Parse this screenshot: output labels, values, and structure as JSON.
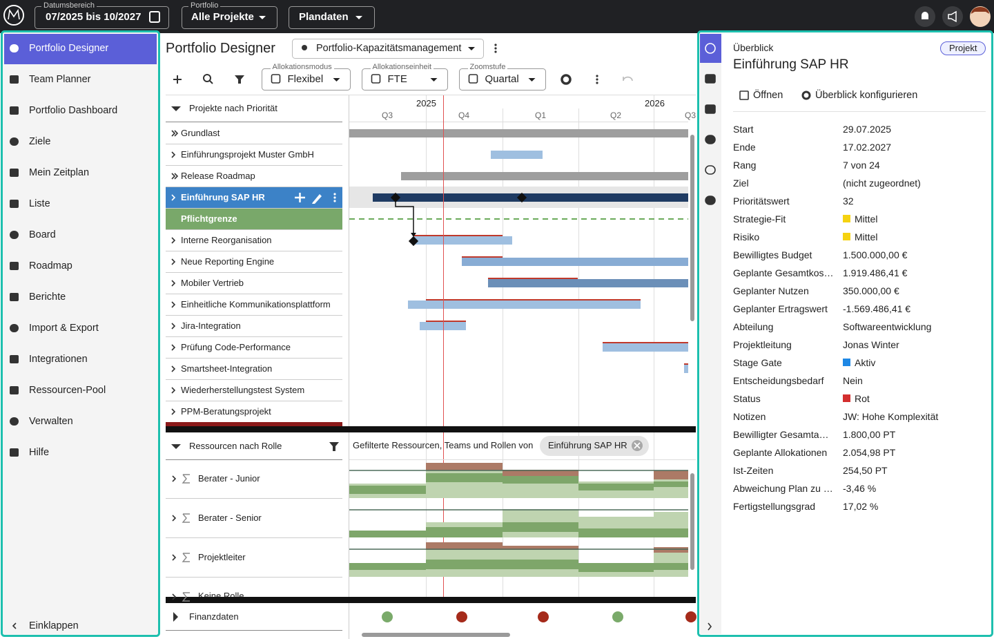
{
  "topbar": {
    "date_label": "Datumsbereich",
    "date_value": "07/2025 bis 10/2027",
    "portfolio_label": "Portfolio",
    "portfolio_value": "Alle Projekte",
    "plandaten": "Plandaten"
  },
  "sidebar": {
    "items": [
      "Portfolio Designer",
      "Team Planner",
      "Portfolio Dashboard",
      "Ziele",
      "Mein Zeitplan",
      "Liste",
      "Board",
      "Roadmap",
      "Berichte",
      "Import & Export",
      "Integrationen",
      "Ressourcen-Pool",
      "Verwalten",
      "Hilfe"
    ],
    "collapse": "Einklappen"
  },
  "main": {
    "title": "Portfolio Designer",
    "view": "Portfolio-Kapazitätsmanagement",
    "toolbar": {
      "alloc_mode_label": "Allokationsmodus",
      "alloc_mode": "Flexibel",
      "alloc_unit_label": "Allokationseinheit",
      "alloc_unit": "FTE",
      "zoom_label": "Zoomstufe",
      "zoom": "Quartal"
    },
    "gantt": {
      "group": "Projekte nach Priorität",
      "years": [
        "2025",
        "2026"
      ],
      "quarters": [
        "Q3",
        "Q4",
        "Q1",
        "Q2",
        "Q3"
      ],
      "rows": [
        "Grundlast",
        "Einführungsprojekt Muster GmbH",
        "Release Roadmap",
        "Einführung SAP HR",
        "Pflichtgrenze",
        "Interne Reorganisation",
        "Neue Reporting Engine",
        "Mobiler Vertrieb",
        "Einheitliche Kommunikationsplattform",
        "Jira-Integration",
        "Prüfung Code-Performance",
        "Smartsheet-Integration",
        "Wiederherstellungstest System",
        "PPM-Beratungsprojekt"
      ]
    },
    "resources": {
      "group": "Ressourcen nach Rolle",
      "filter_text": "Gefilterte Ressourcen, Teams und Rollen von",
      "filter_chip": "Einführung SAP HR",
      "rows": [
        "Berater - Junior",
        "Berater - Senior",
        "Projektleiter",
        "Keine Rolle"
      ]
    },
    "finance": {
      "label": "Finanzdaten"
    }
  },
  "panel": {
    "section": "Überblick",
    "badge": "Projekt",
    "title": "Einführung SAP HR",
    "open": "Öffnen",
    "configure": "Überblick konfigurieren",
    "fields": [
      {
        "label": "Start",
        "value": "29.07.2025"
      },
      {
        "label": "Ende",
        "value": "17.02.2027"
      },
      {
        "label": "Rang",
        "value": "7 von 24"
      },
      {
        "label": "Ziel",
        "value": "(nicht zugeordnet)"
      },
      {
        "label": "Prioritätswert",
        "value": "32"
      },
      {
        "label": "Strategie-Fit",
        "value": "Mittel",
        "color": "#f5d211"
      },
      {
        "label": "Risiko",
        "value": "Mittel",
        "color": "#f5d211"
      },
      {
        "label": "Bewilligtes Budget",
        "value": "1.500.000,00 €"
      },
      {
        "label": "Geplante Gesamtkos…",
        "value": "1.919.486,41 €"
      },
      {
        "label": "Geplanter Nutzen",
        "value": "350.000,00 €"
      },
      {
        "label": "Geplanter Ertragswert",
        "value": "-1.569.486,41 €"
      },
      {
        "label": "Abteilung",
        "value": "Softwareentwicklung"
      },
      {
        "label": "Projektleitung",
        "value": "Jonas Winter"
      },
      {
        "label": "Stage Gate",
        "value": "Aktiv",
        "color": "#1e88e5"
      },
      {
        "label": "Entscheidungsbedarf",
        "value": "Nein"
      },
      {
        "label": "Status",
        "value": "Rot",
        "color": "#d32f2f"
      },
      {
        "label": "Notizen",
        "value": "JW: Hohe Komplexität"
      },
      {
        "label": "Bewilligter Gesamta…",
        "value": "1.800,00 PT"
      },
      {
        "label": "Geplante Allokationen",
        "value": "2.054,98 PT"
      },
      {
        "label": "Ist-Zeiten",
        "value": "254,50 PT"
      },
      {
        "label": "Abweichung Plan zu …",
        "value": "-3,46 %"
      },
      {
        "label": "Fertigstellungsgrad",
        "value": "17,02 %"
      }
    ]
  }
}
